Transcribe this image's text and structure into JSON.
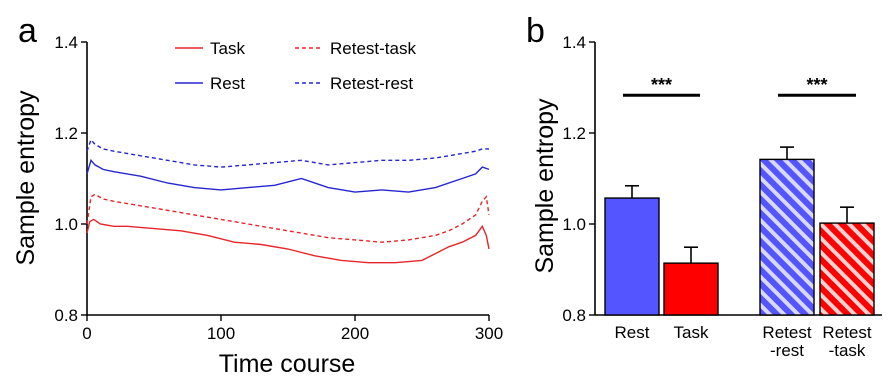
{
  "panels": {
    "a": {
      "letter": "a"
    },
    "b": {
      "letter": "b"
    }
  },
  "colors": {
    "task": "#e8252a",
    "rest": "#2626d0",
    "rest_bar": "#5555ff",
    "task_bar": "#ff0000",
    "stripe_rest": "#d8d8f8",
    "stripe_task": "#f4d2d2"
  },
  "chart_data": [
    {
      "type": "line",
      "panel": "a",
      "xlabel": "Time course",
      "ylabel": "Sample entropy",
      "xlim": [
        0,
        300
      ],
      "ylim": [
        0.8,
        1.4
      ],
      "xticks": [
        0,
        100,
        200,
        300
      ],
      "yticks": [
        0.8,
        1.0,
        1.2,
        1.4
      ],
      "ytick_labels": [
        "0.8",
        "1.0",
        "1.2",
        "1.4"
      ],
      "legend_position": "top",
      "series": [
        {
          "name": "Task",
          "style": "solid",
          "color": "#e8252a",
          "x": [
            0,
            2,
            5,
            10,
            20,
            30,
            50,
            70,
            90,
            110,
            130,
            150,
            170,
            190,
            210,
            230,
            250,
            260,
            270,
            280,
            290,
            295,
            298,
            300
          ],
          "y": [
            0.98,
            1.005,
            1.01,
            1.0,
            0.995,
            0.995,
            0.99,
            0.985,
            0.975,
            0.96,
            0.955,
            0.945,
            0.93,
            0.92,
            0.915,
            0.915,
            0.92,
            0.935,
            0.95,
            0.96,
            0.975,
            0.995,
            0.975,
            0.945
          ]
        },
        {
          "name": "Rest",
          "style": "solid",
          "color": "#2626d0",
          "x": [
            0,
            3,
            6,
            12,
            20,
            40,
            60,
            80,
            100,
            120,
            140,
            160,
            180,
            200,
            220,
            240,
            260,
            280,
            290,
            295,
            300
          ],
          "y": [
            1.11,
            1.14,
            1.13,
            1.12,
            1.115,
            1.105,
            1.09,
            1.08,
            1.075,
            1.08,
            1.085,
            1.1,
            1.08,
            1.07,
            1.075,
            1.07,
            1.08,
            1.1,
            1.11,
            1.125,
            1.12
          ]
        },
        {
          "name": "Retest-task",
          "style": "dashed",
          "color": "#e8252a",
          "x": [
            0,
            3,
            6,
            12,
            20,
            40,
            60,
            80,
            100,
            120,
            140,
            160,
            180,
            200,
            220,
            240,
            260,
            270,
            280,
            290,
            295,
            298,
            300
          ],
          "y": [
            1.0,
            1.06,
            1.065,
            1.055,
            1.05,
            1.04,
            1.03,
            1.02,
            1.01,
            1.0,
            0.99,
            0.98,
            0.97,
            0.965,
            0.96,
            0.965,
            0.975,
            0.985,
            1.0,
            1.02,
            1.05,
            1.06,
            1.02
          ]
        },
        {
          "name": "Retest-rest",
          "style": "dashed",
          "color": "#2626d0",
          "x": [
            0,
            3,
            6,
            12,
            20,
            40,
            60,
            80,
            100,
            120,
            140,
            160,
            180,
            200,
            220,
            240,
            260,
            280,
            290,
            295,
            300
          ],
          "y": [
            1.16,
            1.185,
            1.175,
            1.165,
            1.16,
            1.15,
            1.14,
            1.13,
            1.125,
            1.13,
            1.135,
            1.14,
            1.13,
            1.135,
            1.14,
            1.14,
            1.145,
            1.155,
            1.16,
            1.165,
            1.165
          ]
        }
      ]
    },
    {
      "type": "bar",
      "panel": "b",
      "ylabel": "Sample entropy",
      "ylim": [
        0.8,
        1.4
      ],
      "yticks": [
        0.8,
        1.0,
        1.2,
        1.4
      ],
      "ytick_labels": [
        "0.8",
        "1.0",
        "1.2",
        "1.4"
      ],
      "categories": [
        {
          "line1": "Rest",
          "line2": ""
        },
        {
          "line1": "Task",
          "line2": ""
        },
        {
          "line1": "Retest",
          "line2": "-rest"
        },
        {
          "line1": "Retest",
          "line2": "-task"
        }
      ],
      "values": [
        1.057,
        0.914,
        1.142,
        1.002
      ],
      "errors": [
        0.027,
        0.035,
        0.027,
        0.035
      ],
      "fills": [
        "solid",
        "solid",
        "striped",
        "striped"
      ],
      "colors": [
        "#5555ff",
        "#ff0000",
        "#5555ff",
        "#ff0000"
      ],
      "significance": [
        {
          "between": [
            0,
            1
          ],
          "label": "***",
          "y": 1.283
        },
        {
          "between": [
            2,
            3
          ],
          "label": "***",
          "y": 1.283
        }
      ]
    }
  ]
}
